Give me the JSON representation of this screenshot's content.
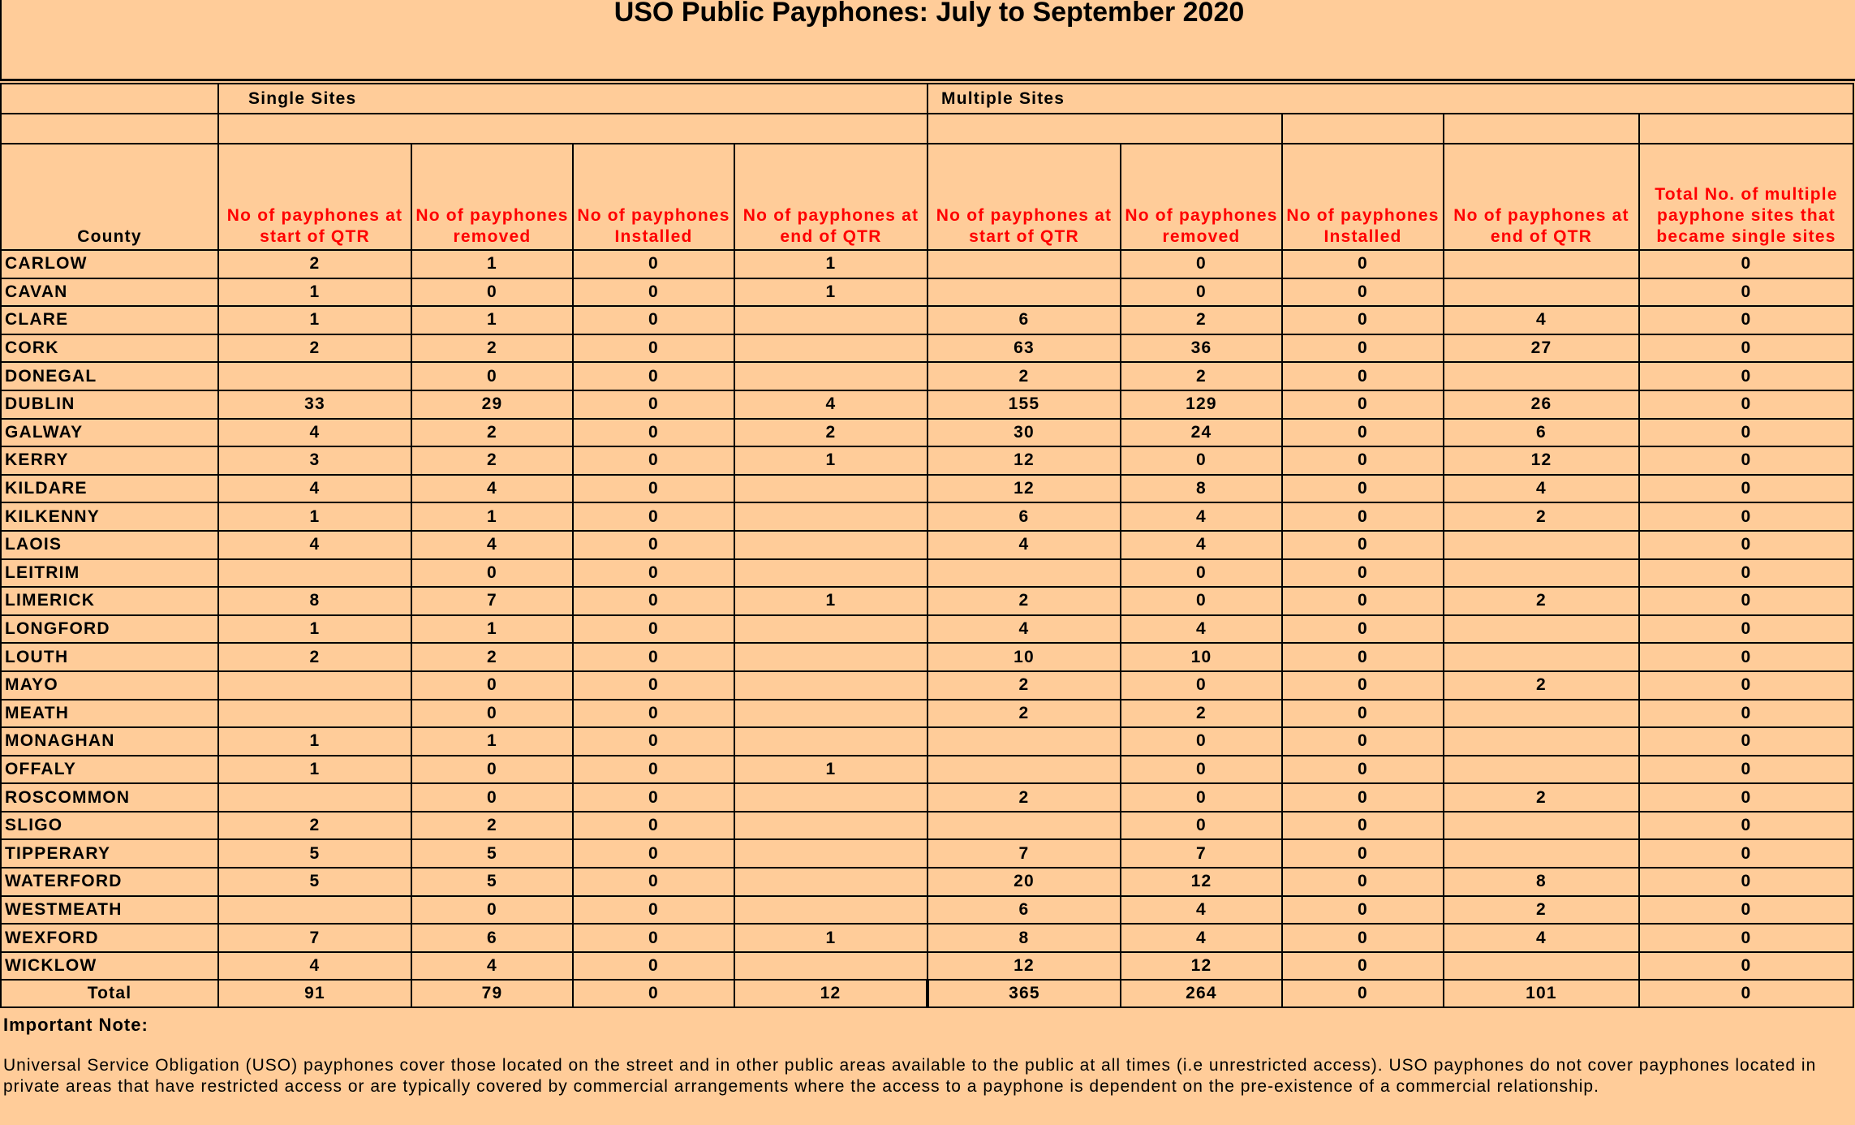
{
  "title": "USO Public Payphones: July to September 2020",
  "groups": {
    "single": "Single Sites",
    "multiple": "Multiple Sites"
  },
  "headers": {
    "county": "County",
    "start": "No of payphones at start of QTR",
    "removed": "No of payphones removed",
    "installed": "No of payphones Installed",
    "end": "No of payphones at end of QTR",
    "became_single": "Total No. of multiple payphone sites that became single sites"
  },
  "rows": [
    {
      "county": "CARLOW",
      "cells": [
        "2",
        "1",
        "0",
        "1",
        "",
        "0",
        "0",
        "",
        "0"
      ]
    },
    {
      "county": "CAVAN",
      "cells": [
        "1",
        "0",
        "0",
        "1",
        "",
        "0",
        "0",
        "",
        "0"
      ]
    },
    {
      "county": "CLARE",
      "cells": [
        "1",
        "1",
        "0",
        "",
        "6",
        "2",
        "0",
        "4",
        "0"
      ]
    },
    {
      "county": "CORK",
      "cells": [
        "2",
        "2",
        "0",
        "",
        "63",
        "36",
        "0",
        "27",
        "0"
      ]
    },
    {
      "county": "DONEGAL",
      "cells": [
        "",
        "0",
        "0",
        "",
        "2",
        "2",
        "0",
        "",
        "0"
      ]
    },
    {
      "county": "DUBLIN",
      "cells": [
        "33",
        "29",
        "0",
        "4",
        "155",
        "129",
        "0",
        "26",
        "0"
      ]
    },
    {
      "county": "GALWAY",
      "cells": [
        "4",
        "2",
        "0",
        "2",
        "30",
        "24",
        "0",
        "6",
        "0"
      ]
    },
    {
      "county": "KERRY",
      "cells": [
        "3",
        "2",
        "0",
        "1",
        "12",
        "0",
        "0",
        "12",
        "0"
      ]
    },
    {
      "county": "KILDARE",
      "cells": [
        "4",
        "4",
        "0",
        "",
        "12",
        "8",
        "0",
        "4",
        "0"
      ]
    },
    {
      "county": "KILKENNY",
      "cells": [
        "1",
        "1",
        "0",
        "",
        "6",
        "4",
        "0",
        "2",
        "0"
      ]
    },
    {
      "county": "LAOIS",
      "cells": [
        "4",
        "4",
        "0",
        "",
        "4",
        "4",
        "0",
        "",
        "0"
      ]
    },
    {
      "county": "LEITRIM",
      "cells": [
        "",
        "0",
        "0",
        "",
        "",
        "0",
        "0",
        "",
        "0"
      ]
    },
    {
      "county": "LIMERICK",
      "cells": [
        "8",
        "7",
        "0",
        "1",
        "2",
        "0",
        "0",
        "2",
        "0"
      ]
    },
    {
      "county": "LONGFORD",
      "cells": [
        "1",
        "1",
        "0",
        "",
        "4",
        "4",
        "0",
        "",
        "0"
      ]
    },
    {
      "county": "LOUTH",
      "cells": [
        "2",
        "2",
        "0",
        "",
        "10",
        "10",
        "0",
        "",
        "0"
      ]
    },
    {
      "county": "MAYO",
      "cells": [
        "",
        "0",
        "0",
        "",
        "2",
        "0",
        "0",
        "2",
        "0"
      ]
    },
    {
      "county": "MEATH",
      "cells": [
        "",
        "0",
        "0",
        "",
        "2",
        "2",
        "0",
        "",
        "0"
      ]
    },
    {
      "county": "MONAGHAN",
      "cells": [
        "1",
        "1",
        "0",
        "",
        "",
        "0",
        "0",
        "",
        "0"
      ]
    },
    {
      "county": "OFFALY",
      "cells": [
        "1",
        "0",
        "0",
        "1",
        "",
        "0",
        "0",
        "",
        "0"
      ]
    },
    {
      "county": "ROSCOMMON",
      "cells": [
        "",
        "0",
        "0",
        "",
        "2",
        "0",
        "0",
        "2",
        "0"
      ]
    },
    {
      "county": "SLIGO",
      "cells": [
        "2",
        "2",
        "0",
        "",
        "",
        "0",
        "0",
        "",
        "0"
      ]
    },
    {
      "county": "TIPPERARY",
      "cells": [
        "5",
        "5",
        "0",
        "",
        "7",
        "7",
        "0",
        "",
        "0"
      ]
    },
    {
      "county": "WATERFORD",
      "cells": [
        "5",
        "5",
        "0",
        "",
        "20",
        "12",
        "0",
        "8",
        "0"
      ]
    },
    {
      "county": "WESTMEATH",
      "cells": [
        "",
        "0",
        "0",
        "",
        "6",
        "4",
        "0",
        "2",
        "0"
      ]
    },
    {
      "county": "WEXFORD",
      "cells": [
        "7",
        "6",
        "0",
        "1",
        "8",
        "4",
        "0",
        "4",
        "0"
      ]
    },
    {
      "county": "WICKLOW",
      "cells": [
        "4",
        "4",
        "0",
        "",
        "12",
        "12",
        "0",
        "",
        "0"
      ]
    }
  ],
  "total": {
    "label": "Total",
    "cells": [
      "91",
      "79",
      "0",
      "12",
      "365",
      "264",
      "0",
      "101",
      "0"
    ]
  },
  "note": {
    "heading": "Important Note:",
    "text": "Universal Service Obligation (USO) payphones cover those located on the street and in other public areas available to the public at all times (i.e unrestricted access).  USO payphones do not cover payphones located in private areas that have restricted access or are typically covered by commercial arrangements where the access to a payphone is dependent on the pre-existence of a commercial relationship."
  }
}
